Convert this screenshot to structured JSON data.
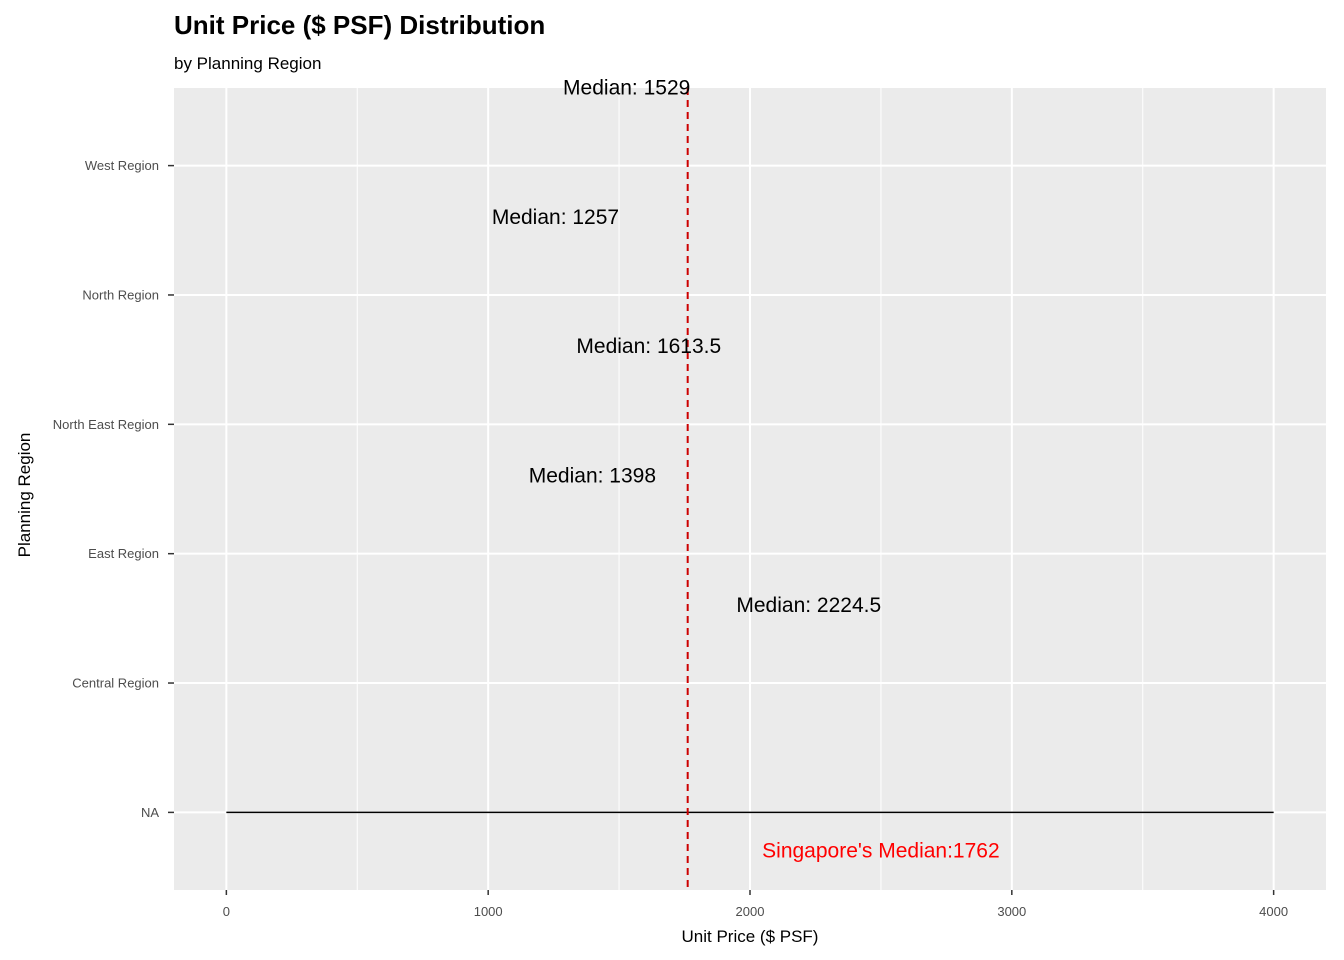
{
  "title": "Unit Price ($ PSF) Distribution",
  "subtitle": "by Planning Region",
  "chart_data": {
    "type": "boxplot",
    "xlabel": "Unit Price ($ PSF)",
    "ylabel": "Planning Region",
    "xlim": [
      -200,
      4200
    ],
    "x_ticks": [
      0,
      1000,
      2000,
      3000,
      4000
    ],
    "categories": [
      "NA",
      "Central Region",
      "East Region",
      "North East Region",
      "North Region",
      "West Region"
    ],
    "grid": true,
    "background": "#EBEBEB",
    "na_line": {
      "category": "NA",
      "x_start": 0,
      "x_end": 4000,
      "color": "#000000"
    },
    "annotations": [
      {
        "text": "Median: 1529",
        "x": 1529,
        "category_pos": 6.6
      },
      {
        "text": "Median: 1257",
        "x": 1257,
        "category_pos": 5.6
      },
      {
        "text": "Median: 1613.5",
        "x": 1613.5,
        "category_pos": 4.6
      },
      {
        "text": "Median: 1398",
        "x": 1398,
        "category_pos": 3.6
      },
      {
        "text": "Median: 2224.5",
        "x": 2224.5,
        "category_pos": 2.6
      }
    ],
    "reference_line": {
      "x": 1762,
      "style": "dashed",
      "color": "#CC0000"
    },
    "reference_label": {
      "text": "Singapore's Median:1762",
      "x": 2500,
      "category_pos": 0.7,
      "color": "#FF0000"
    }
  }
}
